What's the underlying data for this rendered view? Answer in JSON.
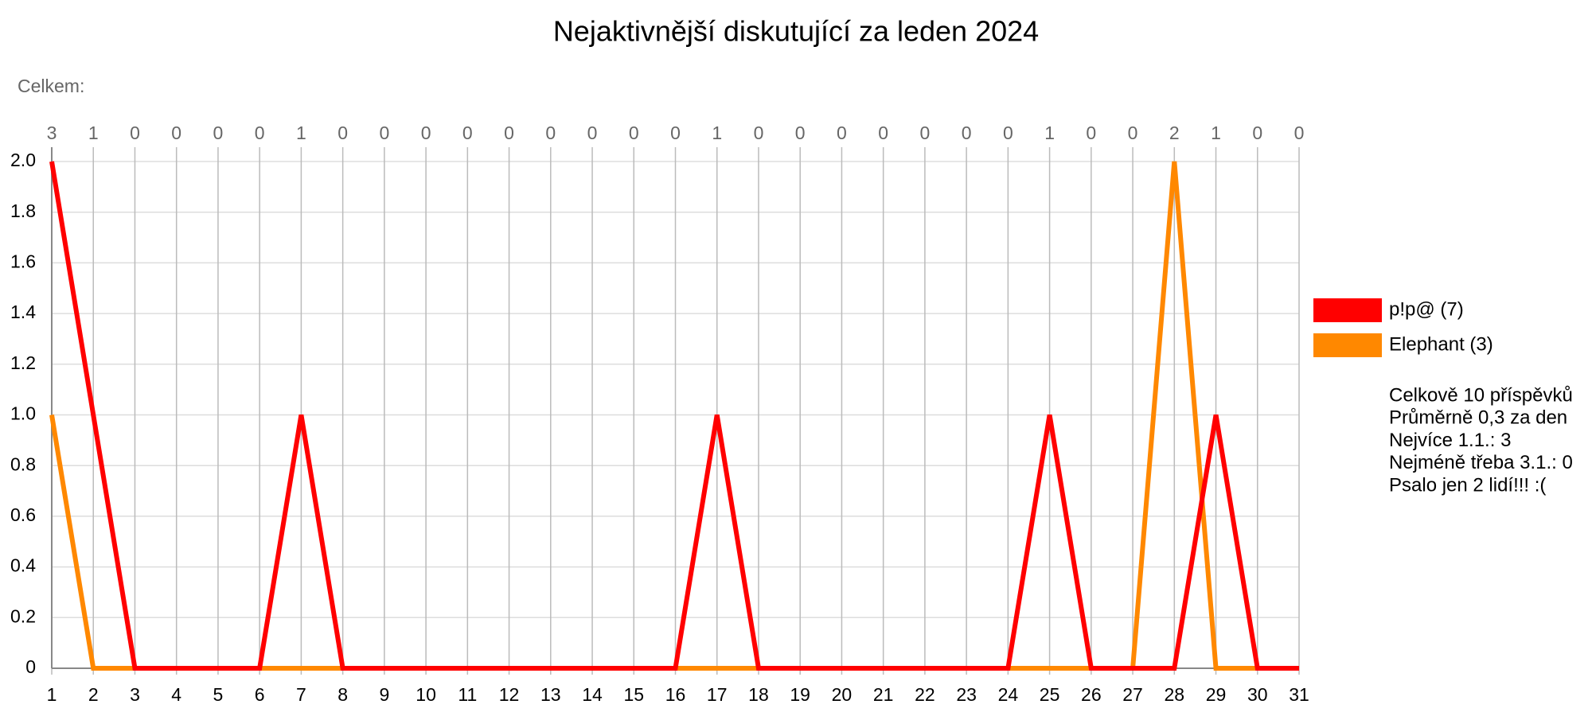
{
  "chart_data": {
    "type": "line",
    "title": "Nejaktivnější diskutující za leden 2024",
    "subtitle": "Celkem:",
    "categories": [
      "1",
      "2",
      "3",
      "4",
      "5",
      "6",
      "7",
      "8",
      "9",
      "10",
      "11",
      "12",
      "13",
      "14",
      "15",
      "16",
      "17",
      "18",
      "19",
      "20",
      "21",
      "22",
      "23",
      "24",
      "25",
      "26",
      "27",
      "28",
      "29",
      "30",
      "31"
    ],
    "totals": [
      3,
      1,
      0,
      0,
      0,
      0,
      1,
      0,
      0,
      0,
      0,
      0,
      0,
      0,
      0,
      0,
      1,
      0,
      0,
      0,
      0,
      0,
      0,
      0,
      1,
      0,
      0,
      2,
      1,
      0,
      0
    ],
    "series": [
      {
        "name": "p!p@ (7)",
        "color": "#ff0000",
        "values": [
          2,
          1,
          0,
          0,
          0,
          0,
          1,
          0,
          0,
          0,
          0,
          0,
          0,
          0,
          0,
          0,
          1,
          0,
          0,
          0,
          0,
          0,
          0,
          0,
          1,
          0,
          0,
          0,
          1,
          0,
          0
        ]
      },
      {
        "name": "Elephant (3)",
        "color": "#ff8800",
        "values": [
          1,
          0,
          0,
          0,
          0,
          0,
          0,
          0,
          0,
          0,
          0,
          0,
          0,
          0,
          0,
          0,
          0,
          0,
          0,
          0,
          0,
          0,
          0,
          0,
          0,
          0,
          0,
          2,
          0,
          0,
          0
        ]
      }
    ],
    "ylim": [
      0,
      2
    ],
    "yticks": [
      0,
      0.2,
      0.4,
      0.6,
      0.8,
      {
        "value": 1,
        "label": "1.0"
      },
      1.2,
      1.4,
      1.6,
      1.8,
      {
        "value": 2,
        "label": "2.0"
      }
    ],
    "grid": true,
    "legend": "right",
    "stats": [
      "Celkově 10 příspěvků",
      "Průměrně 0,3 za den",
      "Nejvíce 1.1.: 3",
      "Nejméně třeba 3.1.: 0",
      "Psalo jen 2 lidí!!! :("
    ]
  }
}
